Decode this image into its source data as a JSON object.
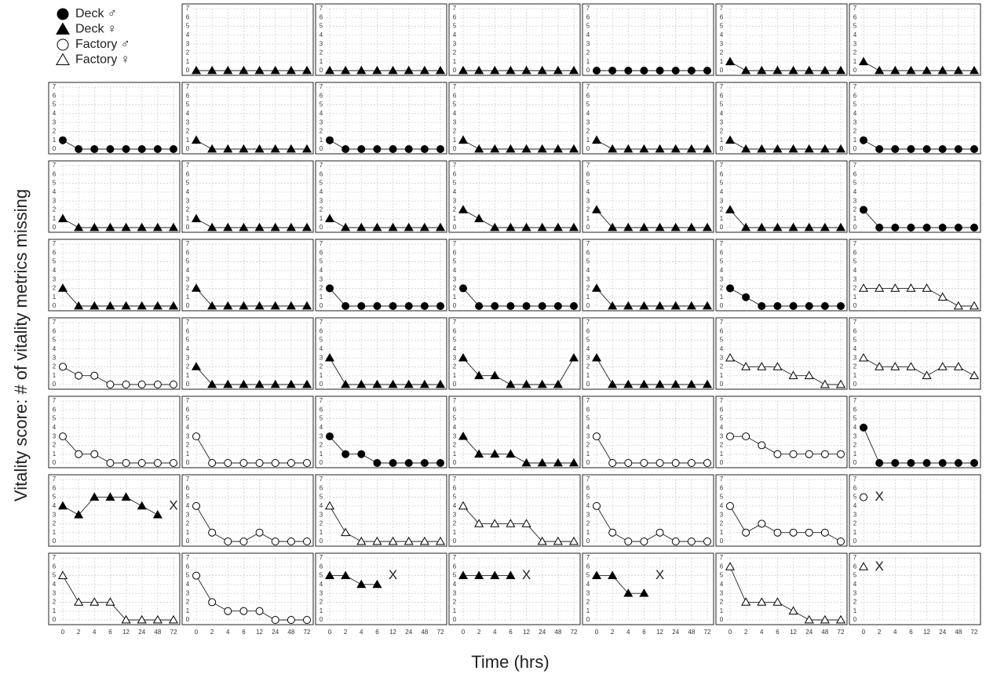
{
  "chart_data": {
    "type": "line",
    "y_label": "Vitality score: # of vitality metrics missing",
    "x_label": "Time (hrs)",
    "categories": [
      "0",
      "2",
      "4",
      "6",
      "12",
      "24",
      "48",
      "72"
    ],
    "ylim": [
      0,
      7
    ],
    "yticks": [
      0,
      1,
      2,
      3,
      4,
      5,
      6,
      7
    ],
    "grid": true,
    "series": [
      {
        "name": "Deck ♂",
        "marker": "circle",
        "color": "#000000",
        "filled": true
      },
      {
        "name": "Deck ♀",
        "marker": "triangle",
        "color": "#000000",
        "filled": true
      },
      {
        "name": "Factory ♂",
        "marker": "circle",
        "color": "#000000",
        "filled": false
      },
      {
        "name": "Factory ♀",
        "marker": "triangle",
        "color": "#000000",
        "filled": false
      }
    ],
    "panels": [
      {
        "series": 1,
        "values": [
          0,
          0,
          0,
          0,
          0,
          0,
          0,
          0
        ]
      },
      {
        "series": 1,
        "values": [
          0,
          0,
          0,
          0,
          0,
          0,
          0,
          0
        ]
      },
      {
        "series": 1,
        "values": [
          0,
          0,
          0,
          0,
          0,
          0,
          0,
          0
        ]
      },
      {
        "series": 0,
        "values": [
          0,
          0,
          0,
          0,
          0,
          0,
          0,
          0
        ]
      },
      {
        "series": 1,
        "values": [
          1,
          0,
          0,
          0,
          0,
          0,
          0,
          0
        ]
      },
      {
        "series": 1,
        "values": [
          1,
          0,
          0,
          0,
          0,
          0,
          0,
          0
        ]
      },
      {
        "series": 0,
        "values": [
          1,
          0,
          0,
          0,
          0,
          0,
          0,
          0
        ]
      },
      {
        "series": 1,
        "values": [
          1,
          0,
          0,
          0,
          0,
          0,
          0,
          0
        ]
      },
      {
        "series": 0,
        "values": [
          1,
          0,
          0,
          0,
          0,
          0,
          0,
          0
        ]
      },
      {
        "series": 1,
        "values": [
          1,
          0,
          0,
          0,
          0,
          0,
          0,
          0
        ]
      },
      {
        "series": 1,
        "values": [
          1,
          0,
          0,
          0,
          0,
          0,
          0,
          0
        ]
      },
      {
        "series": 1,
        "values": [
          1,
          0,
          0,
          0,
          0,
          0,
          0,
          0
        ]
      },
      {
        "series": 0,
        "values": [
          1,
          0,
          0,
          0,
          0,
          0,
          0,
          0
        ]
      },
      {
        "series": 1,
        "values": [
          1,
          0,
          0,
          0,
          0,
          0,
          0,
          0
        ]
      },
      {
        "series": 1,
        "values": [
          1,
          0,
          0,
          0,
          0,
          0,
          0,
          0
        ]
      },
      {
        "series": 1,
        "values": [
          1,
          0,
          0,
          0,
          0,
          0,
          0,
          0
        ]
      },
      {
        "series": 1,
        "values": [
          2,
          1,
          0,
          0,
          0,
          0,
          0,
          0
        ]
      },
      {
        "series": 1,
        "values": [
          2,
          0,
          0,
          0,
          0,
          0,
          0,
          0
        ]
      },
      {
        "series": 1,
        "values": [
          2,
          0,
          0,
          0,
          0,
          0,
          0,
          0
        ]
      },
      {
        "series": 0,
        "values": [
          2,
          0,
          0,
          0,
          0,
          0,
          0,
          0
        ]
      },
      {
        "series": 1,
        "values": [
          2,
          0,
          0,
          0,
          0,
          0,
          0,
          0
        ]
      },
      {
        "series": 1,
        "values": [
          2,
          0,
          0,
          0,
          0,
          0,
          0,
          0
        ]
      },
      {
        "series": 0,
        "values": [
          2,
          0,
          0,
          0,
          0,
          0,
          0,
          0
        ]
      },
      {
        "series": 0,
        "values": [
          2,
          0,
          0,
          0,
          0,
          0,
          0,
          0
        ]
      },
      {
        "series": 1,
        "values": [
          2,
          0,
          0,
          0,
          0,
          0,
          0,
          0
        ]
      },
      {
        "series": 0,
        "values": [
          2,
          1,
          0,
          0,
          0,
          0,
          0,
          0
        ]
      },
      {
        "series": 3,
        "values": [
          2,
          2,
          2,
          2,
          2,
          1,
          0,
          0
        ]
      },
      {
        "series": 2,
        "values": [
          2,
          1,
          1,
          0,
          0,
          0,
          0,
          0
        ]
      },
      {
        "series": 1,
        "values": [
          2,
          0,
          0,
          0,
          0,
          0,
          0,
          0
        ]
      },
      {
        "series": 1,
        "values": [
          3,
          0,
          0,
          0,
          0,
          0,
          0,
          0
        ]
      },
      {
        "series": 1,
        "values": [
          3,
          1,
          1,
          0,
          0,
          0,
          0,
          3
        ]
      },
      {
        "series": 1,
        "values": [
          3,
          0,
          0,
          0,
          0,
          0,
          0,
          0
        ]
      },
      {
        "series": 3,
        "values": [
          3,
          2,
          2,
          2,
          1,
          1,
          0,
          0
        ]
      },
      {
        "series": 3,
        "values": [
          3,
          2,
          2,
          2,
          1,
          2,
          2,
          1
        ]
      },
      {
        "series": 2,
        "values": [
          3,
          1,
          1,
          0,
          0,
          0,
          0,
          0
        ]
      },
      {
        "series": 2,
        "values": [
          3,
          0,
          0,
          0,
          0,
          0,
          0,
          0
        ]
      },
      {
        "series": 0,
        "values": [
          3,
          1,
          1,
          0,
          0,
          0,
          0,
          0
        ]
      },
      {
        "series": 1,
        "values": [
          3,
          1,
          1,
          1,
          0,
          0,
          0,
          0
        ]
      },
      {
        "series": 2,
        "values": [
          3,
          0,
          0,
          0,
          0,
          0,
          0,
          0
        ]
      },
      {
        "series": 2,
        "values": [
          3,
          3,
          2,
          1,
          1,
          1,
          1,
          1
        ]
      },
      {
        "series": 0,
        "values": [
          4,
          0,
          0,
          0,
          0,
          0,
          0,
          0
        ]
      },
      {
        "series": 1,
        "values": [
          4,
          3,
          5,
          5,
          5,
          4,
          3,
          null
        ],
        "death": {
          "label": "X",
          "category": "72"
        }
      },
      {
        "series": 2,
        "values": [
          4,
          1,
          0,
          0,
          1,
          0,
          0,
          0
        ]
      },
      {
        "series": 3,
        "values": [
          4,
          1,
          0,
          0,
          0,
          0,
          0,
          0
        ]
      },
      {
        "series": 3,
        "values": [
          4,
          2,
          2,
          2,
          2,
          0,
          0,
          0
        ]
      },
      {
        "series": 2,
        "values": [
          4,
          1,
          0,
          0,
          1,
          0,
          0,
          0
        ]
      },
      {
        "series": 2,
        "values": [
          4,
          1,
          2,
          1,
          1,
          1,
          1,
          0
        ]
      },
      {
        "series": 2,
        "values": [
          5,
          null,
          null,
          null,
          null,
          null,
          null,
          null
        ],
        "death": {
          "label": "X",
          "category": "2"
        }
      },
      {
        "series": 3,
        "values": [
          5,
          2,
          2,
          2,
          0,
          0,
          0,
          0
        ]
      },
      {
        "series": 2,
        "values": [
          5,
          2,
          1,
          1,
          1,
          0,
          0,
          0
        ]
      },
      {
        "series": 1,
        "values": [
          5,
          5,
          4,
          4,
          null,
          null,
          null,
          null
        ],
        "death": {
          "label": "X",
          "category": "12"
        }
      },
      {
        "series": 1,
        "values": [
          5,
          5,
          5,
          5,
          null,
          null,
          null,
          null
        ],
        "death": {
          "label": "X",
          "category": "12"
        }
      },
      {
        "series": 1,
        "values": [
          5,
          5,
          3,
          3,
          null,
          null,
          null,
          null
        ],
        "death": {
          "label": "X",
          "category": "12"
        }
      },
      {
        "series": 3,
        "values": [
          6,
          2,
          2,
          2,
          1,
          0,
          0,
          0
        ]
      },
      {
        "series": 3,
        "values": [
          6,
          null,
          null,
          null,
          null,
          null,
          null,
          null
        ],
        "death": {
          "label": "X",
          "category": "2"
        }
      }
    ]
  }
}
